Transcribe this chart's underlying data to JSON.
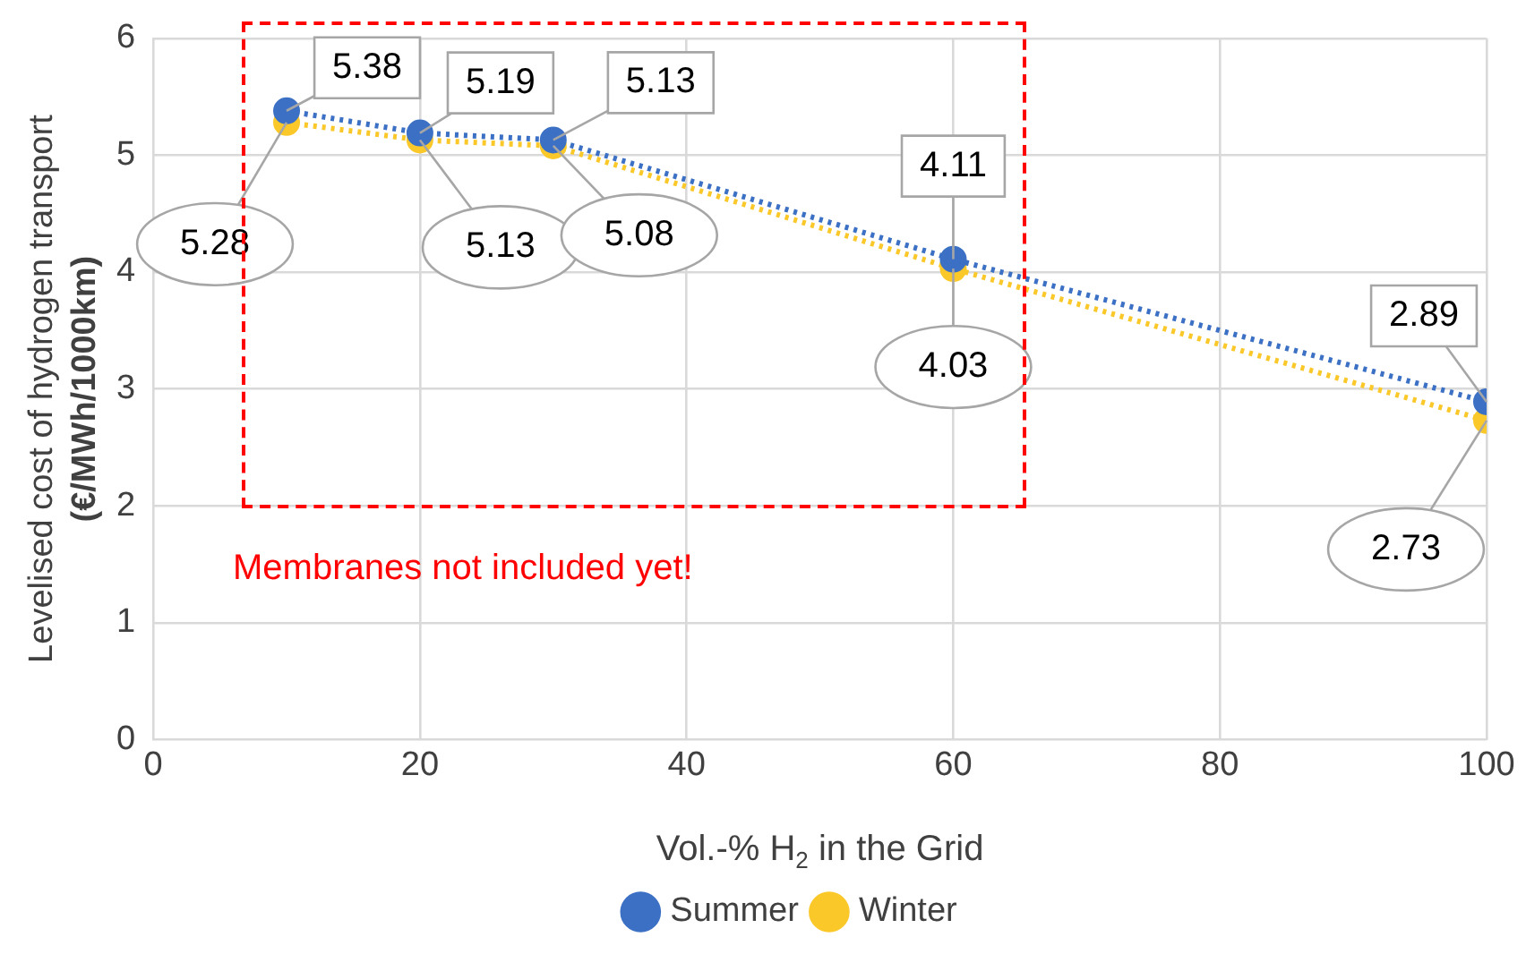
{
  "chart_data": {
    "type": "line",
    "xlabel": "Vol.-% H$_{2}$ in the Grid",
    "ylabel": "Levelised cost of hydrogen transport (€/MWh/1000km)",
    "x": [
      10,
      20,
      30,
      60,
      100
    ],
    "series": [
      {
        "name": "Summer",
        "color": "#3b70c4",
        "values": [
          5.38,
          5.19,
          5.13,
          4.11,
          2.89
        ]
      },
      {
        "name": "Winter",
        "color": "#fbc82a",
        "values": [
          5.28,
          5.13,
          5.08,
          4.03,
          2.73
        ]
      }
    ],
    "xlim": [
      0,
      100
    ],
    "xticks": [
      0,
      20,
      40,
      60,
      80,
      100
    ],
    "ylim": [
      0,
      6
    ],
    "yticks": [
      0,
      1,
      2,
      3,
      4,
      5,
      6
    ],
    "grid": true,
    "legend": "bottom",
    "marker": "circle",
    "line_style": "dotted",
    "data_labels": true,
    "annotations": [
      "Membranes not included yet!"
    ]
  }
}
